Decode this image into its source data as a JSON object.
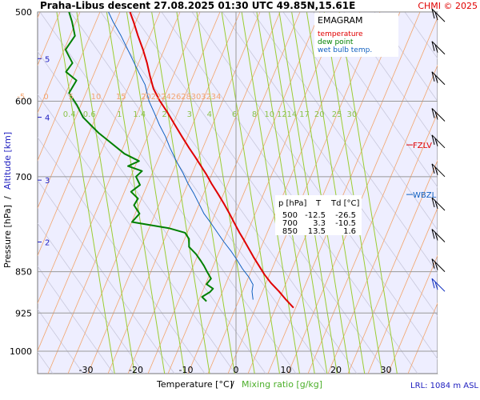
{
  "header": {
    "title": "Praha-Libus   descent   27.08.2025 01:30 UTC   49.85N,15.61E",
    "copyright": "CHMI © 2025"
  },
  "legend": {
    "title": "EMAGRAM",
    "items": [
      {
        "label": "temperature",
        "color": "#e00000"
      },
      {
        "label": "dew point",
        "color": "#008000"
      },
      {
        "label": "wet bulb temp.",
        "color": "#1060c0"
      }
    ]
  },
  "footer": {
    "xlabel_temperature": "Temperature [°C]",
    "xlabel_sep": "/",
    "xlabel_mixing": "Mixing ratio [g/kg]",
    "ylabel_pressure": "Pressure [hPa]",
    "ylabel_sep": "/",
    "ylabel_altitude": "Altitude [km]",
    "lrl": "LRL: 1084 m ASL"
  },
  "colors": {
    "temperature": "#e00000",
    "dewpoint": "#008000",
    "wetbulb": "#1060c0",
    "isotherm": "#f2a46b",
    "mixing_ratio": "#9acd32",
    "dry_adiabat": "#c8c8dc",
    "isobar": "#999999",
    "altitude": "#2020c0",
    "frame_bg": "#eeeeff"
  },
  "chart_data": {
    "type": "line",
    "xlabel": "Temperature [°C]",
    "ylabel": "Pressure [hPa]",
    "xlim": [
      -40,
      40
    ],
    "ylim": [
      1000,
      500
    ],
    "y_scale": "log",
    "x_ticks": [
      -30,
      -20,
      -10,
      0,
      10,
      20,
      30
    ],
    "y_ticks": [
      500,
      600,
      700,
      850,
      925,
      1000
    ],
    "series": [
      {
        "name": "temperature",
        "points": [
          [
            -21.2,
            500
          ],
          [
            -20.5,
            510
          ],
          [
            -19.6,
            525
          ],
          [
            -18.6,
            540
          ],
          [
            -17.8,
            555
          ],
          [
            -17.2,
            570
          ],
          [
            -16.5,
            585
          ],
          [
            -15.2,
            600
          ],
          [
            -13.6,
            615
          ],
          [
            -12.2,
            630
          ],
          [
            -10.8,
            645
          ],
          [
            -9.4,
            660
          ],
          [
            -8.2,
            672
          ],
          [
            -7.0,
            685
          ],
          [
            -5.9,
            697
          ],
          [
            -4.9,
            710
          ],
          [
            -3.6,
            725
          ],
          [
            -2.4,
            740
          ],
          [
            -1.3,
            755
          ],
          [
            -0.3,
            770
          ],
          [
            0.7,
            785
          ],
          [
            1.6,
            797
          ],
          [
            2.5,
            810
          ],
          [
            3.5,
            825
          ],
          [
            4.6,
            840
          ],
          [
            5.7,
            855
          ],
          [
            7.0,
            870
          ],
          [
            8.6,
            885
          ],
          [
            10.0,
            900
          ],
          [
            11.5,
            915
          ]
        ]
      },
      {
        "name": "dew point",
        "points": [
          [
            -33.4,
            500
          ],
          [
            -32.8,
            510
          ],
          [
            -32.2,
            525
          ],
          [
            -34.1,
            540
          ],
          [
            -32.7,
            555
          ],
          [
            -34.0,
            565
          ],
          [
            -31.9,
            575
          ],
          [
            -33.4,
            590
          ],
          [
            -31.8,
            605
          ],
          [
            -30.6,
            620
          ],
          [
            -27.5,
            640
          ],
          [
            -22.3,
            668
          ],
          [
            -19.4,
            678
          ],
          [
            -21.6,
            685
          ],
          [
            -18.8,
            692
          ],
          [
            -20.0,
            700
          ],
          [
            -19.2,
            712
          ],
          [
            -21.0,
            722
          ],
          [
            -19.6,
            732
          ],
          [
            -20.4,
            742
          ],
          [
            -19.3,
            755
          ],
          [
            -20.8,
            768
          ],
          [
            -13.3,
            778
          ],
          [
            -10.2,
            785
          ],
          [
            -9.4,
            795
          ],
          [
            -9.4,
            808
          ],
          [
            -8.0,
            820
          ],
          [
            -7.0,
            832
          ],
          [
            -6.4,
            840
          ],
          [
            -5.8,
            850
          ],
          [
            -5.0,
            862
          ],
          [
            -5.9,
            872
          ],
          [
            -4.6,
            880
          ],
          [
            -5.2,
            886
          ],
          [
            -6.8,
            895
          ],
          [
            -5.9,
            903
          ]
        ]
      },
      {
        "name": "wet bulb temp.",
        "points": [
          [
            -25.5,
            500
          ],
          [
            -24.6,
            510
          ],
          [
            -23.0,
            525
          ],
          [
            -21.2,
            545
          ],
          [
            -19.5,
            565
          ],
          [
            -18.2,
            580
          ],
          [
            -17.4,
            600
          ],
          [
            -16.3,
            615
          ],
          [
            -15.3,
            630
          ],
          [
            -14.1,
            645
          ],
          [
            -13.2,
            660
          ],
          [
            -11.8,
            680
          ],
          [
            -10.6,
            695
          ],
          [
            -9.6,
            710
          ],
          [
            -8.4,
            725
          ],
          [
            -7.4,
            740
          ],
          [
            -6.4,
            755
          ],
          [
            -5.0,
            770
          ],
          [
            -3.7,
            785
          ],
          [
            -2.4,
            800
          ],
          [
            -1.0,
            815
          ],
          [
            0.2,
            830
          ],
          [
            1.3,
            845
          ],
          [
            2.6,
            860
          ],
          [
            3.4,
            873
          ],
          [
            3.2,
            885
          ],
          [
            3.4,
            900
          ]
        ]
      }
    ],
    "altitude_km_ticks": [
      {
        "label": "5",
        "p": 550
      },
      {
        "label": "4",
        "p": 620
      },
      {
        "label": "3",
        "p": 705
      },
      {
        "label": "2",
        "p": 800
      }
    ],
    "mixing_ratio_gkg": [
      {
        "label": "0.4",
        "t600": -33
      },
      {
        "label": "0.6",
        "t600": -29
      },
      {
        "label": "1",
        "t600": -23
      },
      {
        "label": "1.4",
        "t600": -19
      },
      {
        "label": "2",
        "t600": -14
      },
      {
        "label": "3",
        "t600": -9
      },
      {
        "label": "4",
        "t600": -5
      },
      {
        "label": "6",
        "t600": 0
      },
      {
        "label": "8",
        "t600": 4
      },
      {
        "label": "10",
        "t600": 7
      },
      {
        "label": "12",
        "t600": 9.5
      },
      {
        "label": "14",
        "t600": 11.5
      },
      {
        "label": "17",
        "t600": 14
      },
      {
        "label": "20",
        "t600": 17
      },
      {
        "label": "25",
        "t600": 20.5
      },
      {
        "label": "30",
        "t600": 23.5
      }
    ],
    "skewed_isotherm_labels": [
      {
        "label": "-5",
        "t": -43
      },
      {
        "label": "0",
        "t": -38
      },
      {
        "label": "5",
        "t": -33
      },
      {
        "label": "10",
        "t": -28
      },
      {
        "label": "15",
        "t": -23
      },
      {
        "label": "20",
        "t": -18
      },
      {
        "label": "22",
        "t": -16
      },
      {
        "label": "24",
        "t": -14
      },
      {
        "label": "26",
        "t": -12
      },
      {
        "label": "28",
        "t": -10
      },
      {
        "label": "30",
        "t": -8
      },
      {
        "label": "32",
        "t": -6
      },
      {
        "label": "34",
        "t": -4
      }
    ],
    "levels": [
      {
        "label": "FZLV",
        "p": 656
      },
      {
        "label": "WBZL",
        "p": 726
      }
    ],
    "levels_table": {
      "headers": [
        "p [hPa]",
        "T",
        "Td [°C]"
      ],
      "rows": [
        [
          "500",
          "-12.5",
          "-26.5"
        ],
        [
          "700",
          "3.3",
          "-10.5"
        ],
        [
          "850",
          "13.5",
          "1.6"
        ]
      ]
    },
    "wind_barbs_p": [
      510,
      545,
      580,
      625,
      660,
      700,
      750,
      800,
      850,
      885
    ]
  }
}
